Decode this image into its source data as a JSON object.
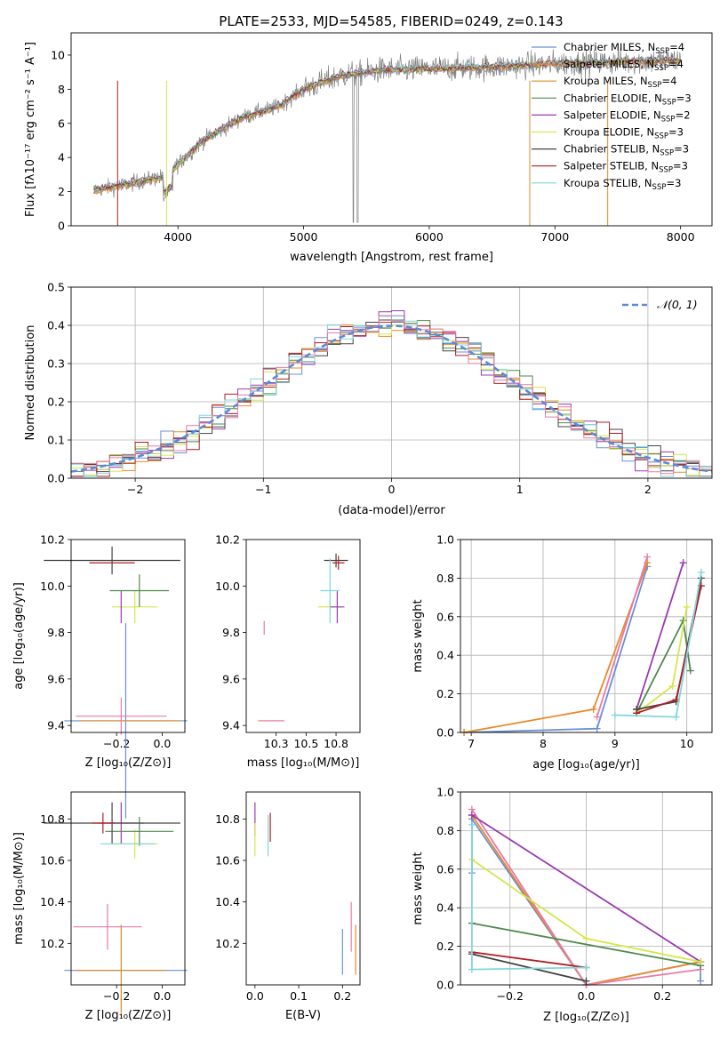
{
  "title": "PLATE=2533, MJD=54585, FIBERID=0249, z=0.143",
  "colors": {
    "chabrier_miles": "#6a8fd8",
    "salpeter_miles": "#e88a2a",
    "kroupa_miles": "#d88a28",
    "chabrier_elodie": "#4e8a4e",
    "salpeter_elodie": "#9a3ab0",
    "kroupa_elodie": "#d6e64a",
    "chabrier_stelib": "#444444",
    "salpeter_stelib": "#b41e22",
    "kroupa_stelib": "#7fd6dc",
    "pink": "#e87aa8",
    "data_gray": "#808080"
  },
  "chart_data": [
    {
      "id": "spectrum",
      "type": "line",
      "xlabel": "wavelength [Angstrom, rest frame]",
      "ylabel": "Flux [fλ10⁻¹⁷ erg cm⁻² s⁻¹ A⁻¹]",
      "xlim": [
        3150,
        8250
      ],
      "ylim": [
        0,
        11.3
      ],
      "xticks": [
        4000,
        5000,
        6000,
        7000,
        8000
      ],
      "yticks": [
        0,
        2,
        4,
        6,
        8,
        10
      ],
      "legend_position": "upper right",
      "legend": [
        {
          "label": "Chabrier MILES, N",
          "sub": "SSP",
          "suffix": "=4",
          "color": "#6a8fd8"
        },
        {
          "label": "Salpeter MILES, N",
          "sub": "SSP",
          "suffix": "=4",
          "color": "#e88a2a"
        },
        {
          "label": "Kroupa MILES, N",
          "sub": "SSP",
          "suffix": "=4",
          "color": "#d88a28"
        },
        {
          "label": "Chabrier ELODIE, N",
          "sub": "SSP",
          "suffix": "=3",
          "color": "#4e8a4e"
        },
        {
          "label": "Salpeter ELODIE, N",
          "sub": "SSP",
          "suffix": "=2",
          "color": "#9a3ab0"
        },
        {
          "label": "Kroupa ELODIE, N",
          "sub": "SSP",
          "suffix": "=3",
          "color": "#d6e64a"
        },
        {
          "label": "Chabrier STELIB, N",
          "sub": "SSP",
          "suffix": "=3",
          "color": "#444444"
        },
        {
          "label": "Salpeter STELIB, N",
          "sub": "SSP",
          "suffix": "=3",
          "color": "#b41e22"
        },
        {
          "label": "Kroupa STELIB, N",
          "sub": "SSP",
          "suffix": "=3",
          "color": "#7fd6dc"
        }
      ],
      "continuum": [
        [
          3330,
          2.1
        ],
        [
          3500,
          2.3
        ],
        [
          3700,
          2.6
        ],
        [
          3900,
          2.9
        ],
        [
          4000,
          3.6
        ],
        [
          4200,
          5.0
        ],
        [
          4500,
          6.3
        ],
        [
          4800,
          7.0
        ],
        [
          5000,
          8.0
        ],
        [
          5300,
          8.8
        ],
        [
          5600,
          9.1
        ],
        [
          6000,
          9.2
        ],
        [
          6500,
          9.3
        ],
        [
          7000,
          9.5
        ],
        [
          7500,
          9.6
        ],
        [
          8000,
          9.7
        ]
      ]
    },
    {
      "id": "residuals",
      "type": "histogram",
      "xlabel": "(data-model)/error",
      "ylabel": "Normed distribution",
      "xlim": [
        -2.5,
        2.5
      ],
      "ylim": [
        0,
        0.5
      ],
      "xticks": [
        -2,
        -1,
        0,
        1,
        2
      ],
      "yticks": [
        0.0,
        0.1,
        0.2,
        0.3,
        0.4,
        0.5
      ],
      "grid": true,
      "legend_position": "upper right",
      "gaussian_label": "𝒩(0, 1)",
      "gaussian_color": "#5b8ad6"
    },
    {
      "id": "age_vs_Z",
      "type": "scatter",
      "xlabel": "Z [log₁₀(Z/Z⊙)]",
      "ylabel": "age  [log₁₀(age/yr)]",
      "xlim": [
        -0.4,
        0.1
      ],
      "ylim": [
        9.37,
        10.2
      ],
      "xticks": [
        -0.2,
        0.0
      ],
      "yticks": [
        9.4,
        9.6,
        9.8,
        10.0,
        10.2
      ],
      "points": [
        {
          "x": -0.16,
          "y": 9.42,
          "xerr": 0.27,
          "yerr": 0.42,
          "color": "#6a8fd8"
        },
        {
          "x": -0.14,
          "y": 9.42,
          "xerr": 0.22,
          "yerr": 0.0,
          "color": "#d88a28"
        },
        {
          "x": -0.18,
          "y": 9.44,
          "xerr": 0.2,
          "yerr": 0.08,
          "color": "#e87aa8"
        },
        {
          "x": -0.12,
          "y": 9.91,
          "xerr": 0.1,
          "yerr": 0.07,
          "color": "#d6e64a"
        },
        {
          "x": -0.18,
          "y": 9.91,
          "xerr": 0.0,
          "yerr": 0.07,
          "color": "#9a3ab0"
        },
        {
          "x": -0.1,
          "y": 9.98,
          "xerr": 0.13,
          "yerr": 0.07,
          "color": "#4e8a4e"
        },
        {
          "x": -0.22,
          "y": 10.11,
          "xerr": 0.3,
          "yerr": 0.06,
          "color": "#444444"
        },
        {
          "x": -0.22,
          "y": 10.1,
          "xerr": 0.1,
          "yerr": 0.0,
          "color": "#b41e22"
        }
      ]
    },
    {
      "id": "age_vs_mass",
      "type": "scatter",
      "xlabel": "mass [log₁₀(M/M⊙)]",
      "ylabel": "",
      "xlim": [
        10.0,
        10.95
      ],
      "ylim": [
        9.37,
        10.2
      ],
      "xticks": [
        10.25,
        10.5,
        10.75
      ],
      "yticks": [
        9.4,
        9.6,
        9.8,
        10.0,
        10.2
      ],
      "points": [
        {
          "x": 10.2,
          "y": 9.42,
          "xerr": 0.1,
          "yerr": 0.0,
          "color": "#d88a28"
        },
        {
          "x": 10.22,
          "y": 9.42,
          "xerr": 0.1,
          "yerr": 0.0,
          "color": "#e87aa8"
        },
        {
          "x": 10.15,
          "y": 9.82,
          "xerr": 0.0,
          "yerr": 0.03,
          "color": "#e87aa8"
        },
        {
          "x": 10.7,
          "y": 9.91,
          "xerr": 0.1,
          "yerr": 0.03,
          "color": "#d6e64a"
        },
        {
          "x": 10.76,
          "y": 9.91,
          "xerr": 0.06,
          "yerr": 0.07,
          "color": "#9a3ab0"
        },
        {
          "x": 10.75,
          "y": 10.11,
          "xerr": 0.1,
          "yerr": 0.03,
          "color": "#444444"
        },
        {
          "x": 10.77,
          "y": 10.1,
          "xerr": 0.05,
          "yerr": 0.03,
          "color": "#b41e22"
        },
        {
          "x": 10.7,
          "y": 9.98,
          "xerr": 0.08,
          "yerr": 0.14,
          "color": "#7fd6dc"
        }
      ]
    },
    {
      "id": "weight_vs_age",
      "type": "line",
      "xlabel": "age  [log₁₀(age/yr)]",
      "ylabel": "mass weight",
      "xlim": [
        6.85,
        10.35
      ],
      "ylim": [
        0,
        1.0
      ],
      "xticks": [
        7,
        8,
        9,
        10
      ],
      "yticks": [
        0.0,
        0.2,
        0.4,
        0.6,
        0.8,
        1.0
      ],
      "grid": true,
      "series": [
        {
          "color": "#6a8fd8",
          "x": [
            6.9,
            8.75,
            9.45
          ],
          "y": [
            0.0,
            0.02,
            0.86
          ]
        },
        {
          "color": "#e88a2a",
          "x": [
            6.9,
            8.7,
            9.45
          ],
          "y": [
            0.0,
            0.12,
            0.88
          ]
        },
        {
          "color": "#e87aa8",
          "x": [
            8.75,
            9.45
          ],
          "y": [
            0.08,
            0.91
          ]
        },
        {
          "color": "#9a3ab0",
          "x": [
            9.3,
            9.95
          ],
          "y": [
            0.12,
            0.88
          ]
        },
        {
          "color": "#4e8a4e",
          "x": [
            9.3,
            9.95,
            10.05
          ],
          "y": [
            0.1,
            0.58,
            0.32
          ]
        },
        {
          "color": "#d6e64a",
          "x": [
            9.3,
            9.8,
            10.0
          ],
          "y": [
            0.1,
            0.24,
            0.65
          ]
        },
        {
          "color": "#444444",
          "x": [
            9.3,
            9.85,
            10.2
          ],
          "y": [
            0.12,
            0.16,
            0.8
          ]
        },
        {
          "color": "#b41e22",
          "x": [
            9.3,
            9.85,
            10.2
          ],
          "y": [
            0.1,
            0.17,
            0.76
          ]
        },
        {
          "color": "#7fd6dc",
          "x": [
            9.0,
            9.85,
            10.2
          ],
          "y": [
            0.09,
            0.08,
            0.83
          ]
        }
      ]
    },
    {
      "id": "mass_vs_Z",
      "type": "scatter",
      "xlabel": "Z [log₁₀(Z/Z⊙)]",
      "ylabel": "mass [log₁₀(M/M⊙)]",
      "xlim": [
        -0.4,
        0.1
      ],
      "ylim": [
        10.0,
        10.93
      ],
      "xticks": [
        -0.2,
        0.0
      ],
      "yticks": [
        10.2,
        10.4,
        10.6,
        10.8
      ],
      "points": [
        {
          "x": -0.16,
          "y": 10.07,
          "xerr": 0.27,
          "yerr": 0.0,
          "color": "#6a8fd8"
        },
        {
          "x": -0.18,
          "y": 10.07,
          "xerr": 0.2,
          "yerr": 0.22,
          "color": "#d88a28"
        },
        {
          "x": -0.24,
          "y": 10.28,
          "xerr": 0.15,
          "yerr": 0.11,
          "color": "#e87aa8"
        },
        {
          "x": -0.12,
          "y": 10.68,
          "xerr": 0.1,
          "yerr": 0.07,
          "color": "#d6e64a"
        },
        {
          "x": -0.18,
          "y": 10.78,
          "xerr": 0.1,
          "yerr": 0.1,
          "color": "#9a3ab0"
        },
        {
          "x": -0.1,
          "y": 10.74,
          "xerr": 0.15,
          "yerr": 0.07,
          "color": "#4e8a4e"
        },
        {
          "x": -0.22,
          "y": 10.78,
          "xerr": 0.3,
          "yerr": 0.1,
          "color": "#444444"
        },
        {
          "x": -0.26,
          "y": 10.78,
          "xerr": 0.05,
          "yerr": 0.05,
          "color": "#b41e22"
        },
        {
          "x": -0.15,
          "y": 10.68,
          "xerr": 0.12,
          "yerr": 0.0,
          "color": "#7fd6dc"
        }
      ]
    },
    {
      "id": "mass_vs_ebv",
      "type": "scatter",
      "xlabel": "E(B-V)",
      "ylabel": "",
      "xlim": [
        -0.02,
        0.24
      ],
      "ylim": [
        10.0,
        10.93
      ],
      "xticks": [
        0.0,
        0.1,
        0.2
      ],
      "yticks": [
        10.2,
        10.4,
        10.6,
        10.8
      ],
      "points": [
        {
          "x": 0.0,
          "y": 10.8,
          "xerr": 0.0,
          "yerr": 0.08,
          "color": "#9a3ab0"
        },
        {
          "x": 0.0,
          "y": 10.7,
          "xerr": 0.0,
          "yerr": 0.08,
          "color": "#d6e64a"
        },
        {
          "x": 0.03,
          "y": 10.72,
          "xerr": 0.0,
          "yerr": 0.1,
          "color": "#7fd6dc"
        },
        {
          "x": 0.035,
          "y": 10.76,
          "xerr": 0.0,
          "yerr": 0.07,
          "color": "#b41e22"
        },
        {
          "x": 0.2,
          "y": 10.16,
          "xerr": 0.0,
          "yerr": 0.11,
          "color": "#6a8fd8"
        },
        {
          "x": 0.22,
          "y": 10.28,
          "xerr": 0.0,
          "yerr": 0.12,
          "color": "#e87aa8"
        },
        {
          "x": 0.23,
          "y": 10.17,
          "xerr": 0.0,
          "yerr": 0.12,
          "color": "#d88a28"
        }
      ]
    },
    {
      "id": "weight_vs_Z",
      "type": "line",
      "xlabel": "Z [log₁₀(Z/Z⊙)]",
      "ylabel": "mass weight",
      "xlim": [
        -0.33,
        0.33
      ],
      "ylim": [
        0,
        1.0
      ],
      "xticks": [
        -0.2,
        0.0,
        0.2
      ],
      "yticks": [
        0.0,
        0.2,
        0.4,
        0.6,
        0.8,
        1.0
      ],
      "grid": true,
      "series": [
        {
          "color": "#6a8fd8",
          "x": [
            -0.3,
            -0.3,
            0.0,
            0.3,
            0.3
          ],
          "y": [
            0.58,
            0.86,
            0.0,
            0.12,
            0.02
          ]
        },
        {
          "color": "#e88a2a",
          "x": [
            -0.3,
            0.0,
            0.3
          ],
          "y": [
            0.88,
            0.0,
            0.12
          ]
        },
        {
          "color": "#e87aa8",
          "x": [
            -0.3,
            0.0,
            0.3
          ],
          "y": [
            0.91,
            0.0,
            0.08
          ]
        },
        {
          "color": "#9a3ab0",
          "x": [
            -0.3,
            0.3
          ],
          "y": [
            0.88,
            0.12
          ]
        },
        {
          "color": "#4e8a4e",
          "x": [
            -0.3,
            0.3
          ],
          "y": [
            0.32,
            0.1
          ]
        },
        {
          "color": "#d6e64a",
          "x": [
            -0.3,
            0.0,
            0.3
          ],
          "y": [
            0.65,
            0.24,
            0.12
          ]
        },
        {
          "color": "#444444",
          "x": [
            -0.3,
            0.0
          ],
          "y": [
            0.16,
            0.02
          ]
        },
        {
          "color": "#b41e22",
          "x": [
            -0.3,
            0.0
          ],
          "y": [
            0.17,
            0.09
          ]
        },
        {
          "color": "#7fd6dc",
          "x": [
            -0.3,
            -0.3,
            0.0
          ],
          "y": [
            0.83,
            0.08,
            0.09
          ]
        }
      ]
    }
  ]
}
